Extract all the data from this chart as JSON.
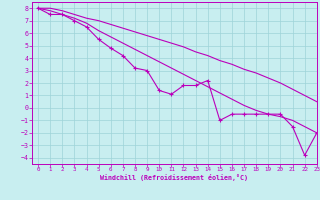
{
  "xlabel": "Windchill (Refroidissement éolien,°C)",
  "xlim": [
    -0.5,
    23
  ],
  "ylim": [
    -4.5,
    8.5
  ],
  "xticks": [
    0,
    1,
    2,
    3,
    4,
    5,
    6,
    7,
    8,
    9,
    10,
    11,
    12,
    13,
    14,
    15,
    16,
    17,
    18,
    19,
    20,
    21,
    22,
    23
  ],
  "yticks": [
    -4,
    -3,
    -2,
    -1,
    0,
    1,
    2,
    3,
    4,
    5,
    6,
    7,
    8
  ],
  "bg_color": "#c8eef0",
  "line_color": "#bb00bb",
  "grid_color": "#9ed4d8",
  "line1_x": [
    0,
    1,
    2,
    3,
    4,
    5,
    6,
    7,
    8,
    9,
    10,
    11,
    12,
    13,
    14,
    15,
    16,
    17,
    18,
    19,
    20,
    21,
    22,
    23
  ],
  "line1_y": [
    8.0,
    7.5,
    7.5,
    7.0,
    6.5,
    5.5,
    4.8,
    4.2,
    3.2,
    3.0,
    1.4,
    1.1,
    1.8,
    1.8,
    2.2,
    -1.0,
    -0.5,
    -0.5,
    -0.5,
    -0.5,
    -0.5,
    -1.5,
    -3.8,
    -2.0
  ],
  "line2_x": [
    0,
    1,
    2,
    3,
    4,
    5,
    6,
    7,
    8,
    9,
    10,
    11,
    12,
    13,
    14,
    15,
    16,
    17,
    18,
    19,
    20,
    21,
    22,
    23
  ],
  "line2_y": [
    8.0,
    7.8,
    7.5,
    7.2,
    6.8,
    6.2,
    5.7,
    5.2,
    4.7,
    4.2,
    3.7,
    3.2,
    2.7,
    2.2,
    1.7,
    1.2,
    0.7,
    0.2,
    -0.2,
    -0.5,
    -0.7,
    -1.0,
    -1.5,
    -2.0
  ],
  "line3_x": [
    0,
    1,
    2,
    3,
    4,
    5,
    6,
    7,
    8,
    9,
    10,
    11,
    12,
    13,
    14,
    15,
    16,
    17,
    18,
    19,
    20,
    21,
    22,
    23
  ],
  "line3_y": [
    8.0,
    8.0,
    7.8,
    7.5,
    7.2,
    7.0,
    6.7,
    6.4,
    6.1,
    5.8,
    5.5,
    5.2,
    4.9,
    4.5,
    4.2,
    3.8,
    3.5,
    3.1,
    2.8,
    2.4,
    2.0,
    1.5,
    1.0,
    0.5
  ]
}
